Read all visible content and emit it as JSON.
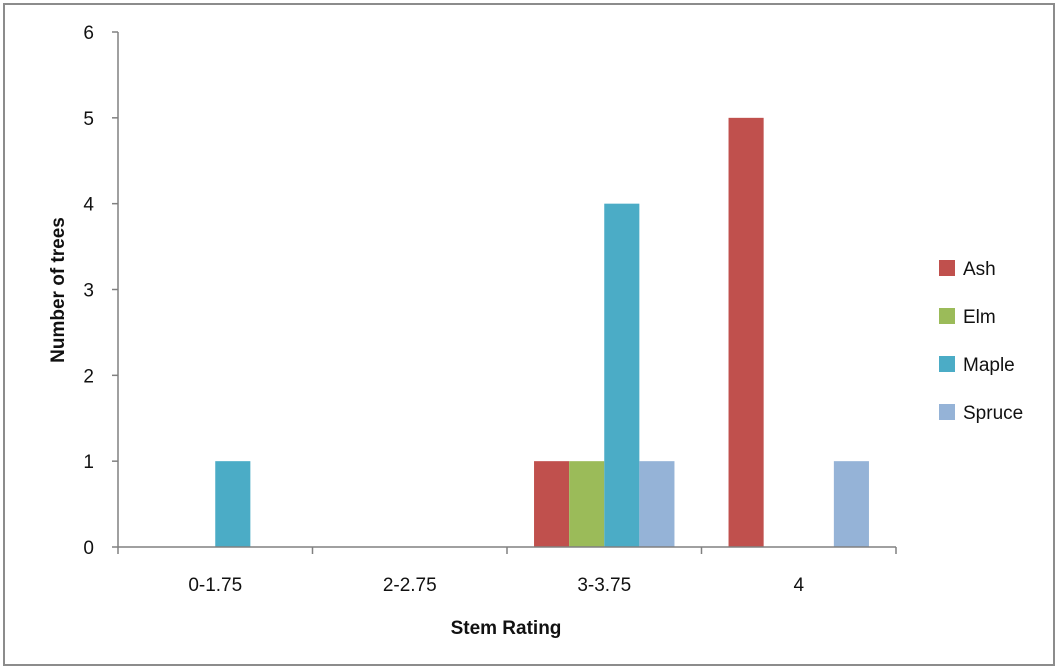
{
  "chart_data": {
    "type": "bar",
    "categories": [
      "0-1.75",
      "2-2.75",
      "3-3.75",
      "4"
    ],
    "series": [
      {
        "name": "Ash",
        "color": "#c0504d",
        "values": [
          0,
          0,
          1,
          5
        ]
      },
      {
        "name": "Elm",
        "color": "#9bbb59",
        "values": [
          0,
          0,
          1,
          0
        ]
      },
      {
        "name": "Maple",
        "color": "#4bacc6",
        "values": [
          1,
          0,
          4,
          0
        ]
      },
      {
        "name": "Spruce",
        "color": "#95b3d7",
        "values": [
          0,
          0,
          1,
          1
        ]
      }
    ],
    "xlabel": "Stem Rating",
    "ylabel": "Number of trees",
    "ylim": [
      0,
      6
    ],
    "yticks": [
      0,
      1,
      2,
      3,
      4,
      5,
      6
    ],
    "grid": false,
    "legend_position": "right"
  }
}
